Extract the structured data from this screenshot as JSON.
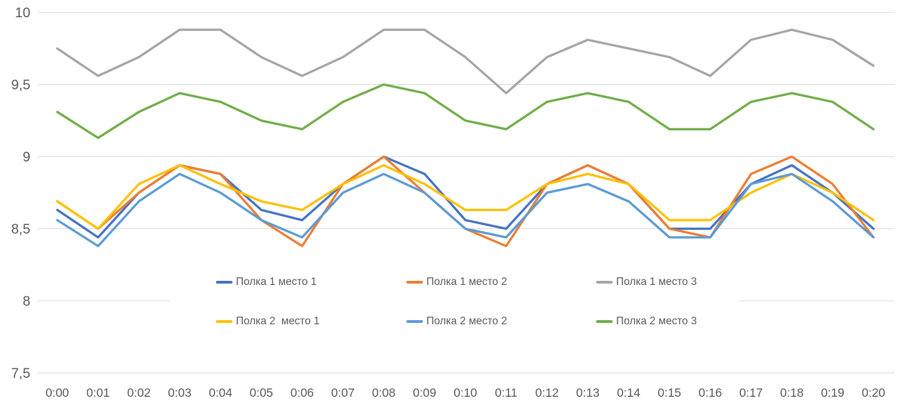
{
  "chart_data": {
    "type": "line",
    "title": "",
    "categories": [
      "0:00",
      "0:01",
      "0:02",
      "0:03",
      "0:04",
      "0:05",
      "0:06",
      "0:07",
      "0:08",
      "0:09",
      "0:10",
      "0:11",
      "0:12",
      "0:13",
      "0:14",
      "0:15",
      "0:16",
      "0:17",
      "0:18",
      "0:19",
      "0:20"
    ],
    "series": [
      {
        "name": "Полка 1 место 1",
        "color": "#4472C4",
        "values": [
          8.63,
          8.44,
          8.75,
          8.94,
          8.88,
          8.63,
          8.56,
          8.81,
          9.0,
          8.88,
          8.56,
          8.5,
          8.81,
          8.94,
          8.81,
          8.5,
          8.5,
          8.81,
          8.94,
          8.75,
          8.5
        ]
      },
      {
        "name": "Полка 1 место 2",
        "color": "#ED7D31",
        "values": [
          8.69,
          8.5,
          8.75,
          8.94,
          8.88,
          8.56,
          8.38,
          8.81,
          9.0,
          8.75,
          8.5,
          8.38,
          8.81,
          8.94,
          8.81,
          8.5,
          8.44,
          8.88,
          9.0,
          8.81,
          8.44
        ]
      },
      {
        "name": "Полка 1 место 3",
        "color": "#A5A5A5",
        "values": [
          9.75,
          9.56,
          9.69,
          9.88,
          9.88,
          9.69,
          9.56,
          9.69,
          9.88,
          9.88,
          9.69,
          9.44,
          9.69,
          9.81,
          9.75,
          9.69,
          9.56,
          9.81,
          9.88,
          9.81,
          9.63
        ]
      },
      {
        "name": "Полка 2  место 1",
        "color": "#FFC000",
        "values": [
          8.69,
          8.5,
          8.81,
          8.94,
          8.81,
          8.69,
          8.63,
          8.81,
          8.94,
          8.81,
          8.63,
          8.63,
          8.81,
          8.88,
          8.81,
          8.56,
          8.56,
          8.75,
          8.88,
          8.75,
          8.56
        ]
      },
      {
        "name": "Полка 2 место 2",
        "color": "#5B9BD5",
        "values": [
          8.56,
          8.38,
          8.69,
          8.88,
          8.75,
          8.56,
          8.44,
          8.75,
          8.88,
          8.75,
          8.5,
          8.44,
          8.75,
          8.81,
          8.69,
          8.44,
          8.44,
          8.81,
          8.88,
          8.69,
          8.44
        ]
      },
      {
        "name": "Полка 2 место 3",
        "color": "#70AD47",
        "values": [
          9.31,
          9.13,
          9.31,
          9.44,
          9.38,
          9.25,
          9.19,
          9.38,
          9.5,
          9.44,
          9.25,
          9.19,
          9.38,
          9.44,
          9.38,
          9.19,
          9.19,
          9.38,
          9.44,
          9.38,
          9.19
        ]
      }
    ],
    "xlabel": "",
    "ylabel": "",
    "y_axis": {
      "min": 7.5,
      "max": 10,
      "step": 0.5,
      "tick_labels": [
        "10",
        "9,5",
        "9",
        "8,5",
        "8",
        "7,5"
      ]
    },
    "x_axis": {
      "tick_labels": [
        "0:00",
        "0:01",
        "0:02",
        "0:03",
        "0:04",
        "0:05",
        "0:06",
        "0:07",
        "0:08",
        "0:09",
        "0:10",
        "0:11",
        "0:12",
        "0:13",
        "0:14",
        "0:15",
        "0:16",
        "0:17",
        "0:18",
        "0:19",
        "0:20"
      ]
    },
    "grid": true,
    "legend_position": "overlay-center",
    "legend_rows": [
      [
        "Полка 1 место 1",
        "Полка 1 место 2",
        "Полка 1 место 3"
      ],
      [
        "Полка 2  место 1",
        "Полка 2 место 2",
        "Полка 2 место 3"
      ]
    ]
  },
  "colors": {
    "background": "#FFFFFF",
    "gridline": "#D9D9D9",
    "axis_text": "#595959",
    "legend_text": "#595959"
  }
}
